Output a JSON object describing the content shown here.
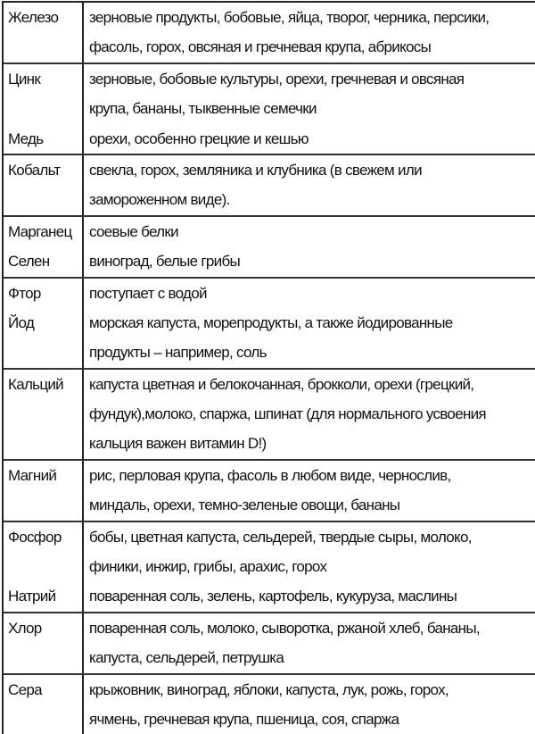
{
  "rows": [
    {
      "lines": [
        {
          "label": "Железо",
          "text": "зерновые продукты, бобовые, яйца, творог, черника, персики,"
        },
        {
          "label": "",
          "text": "фасоль, горох, овсяная и гречневая крупа, абрикосы"
        }
      ]
    },
    {
      "lines": [
        {
          "label": "Цинк",
          "text": "зерновые, бобовые культуры, орехи, гречневая и овсяная"
        },
        {
          "label": "",
          "text": "крупа, бананы, тыквенные семечки"
        },
        {
          "label": "Медь",
          "text": "орехи, особенно грецкие и кешью"
        }
      ]
    },
    {
      "lines": [
        {
          "label": "Кобальт",
          "text": "свекла, горох, земляника и клубника (в свежем или"
        },
        {
          "label": "",
          "text": "замороженном виде)."
        }
      ]
    },
    {
      "lines": [
        {
          "label": "Марганец",
          "text": "соевые белки"
        },
        {
          "label": "Селен",
          "text": "виноград, белые грибы"
        }
      ]
    },
    {
      "lines": [
        {
          "label": "Фтор",
          "text": "поступает с водой"
        },
        {
          "label": "Йод",
          "text": "морская капуста, морепродукты, а также йодированные"
        },
        {
          "label": "",
          "text": "продукты – например, соль"
        }
      ]
    },
    {
      "lines": [
        {
          "label": "Кальций",
          "text": "капуста цветная и белокочанная, брокколи, орехи (грецкий,"
        },
        {
          "label": "",
          "text": "фундук),молоко,  спаржа, шпинат (для нормального усвоения"
        },
        {
          "label": "",
          "text": "кальция важен витамин D!)"
        }
      ]
    },
    {
      "lines": [
        {
          "label": "Магний",
          "text": "рис, перловая крупа, фасоль в любом виде, чернослив,"
        },
        {
          "label": "",
          "text": "миндаль, орехи, темно-зеленые овощи, бананы"
        }
      ]
    },
    {
      "lines": [
        {
          "label": "Фосфор",
          "text": "бобы, цветная капуста, сельдерей, твердые сыры, молоко,"
        },
        {
          "label": "",
          "text": "финики, инжир, грибы, арахис, горох"
        },
        {
          "label": "Натрий",
          "text": "поваренная соль, зелень, картофель, кукуруза, маслины"
        }
      ]
    },
    {
      "lines": [
        {
          "label": "Хлор",
          "text": "поваренная соль, молоко, сыворотка, ржаной хлеб, бананы,"
        },
        {
          "label": "",
          "text": "капуста, сельдерей, петрушка"
        }
      ]
    },
    {
      "lines": [
        {
          "label": "Сера",
          "text": "крыжовник, виноград, яблоки, капуста, лук, рожь, горох,"
        },
        {
          "label": "",
          "text": "ячмень, гречневая крупа, пшеница, соя, спаржа"
        }
      ]
    }
  ]
}
